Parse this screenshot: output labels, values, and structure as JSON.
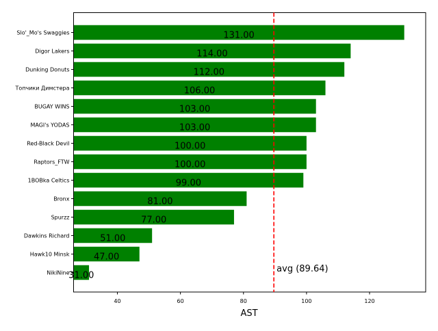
{
  "chart_data": {
    "type": "bar",
    "orientation": "horizontal",
    "title": "",
    "xlabel": "AST",
    "ylabel": "",
    "categories": [
      "Slo'_Mo's Swaggies",
      "Digor Lakers",
      "Dunking Donuts",
      "Топчики Димстера",
      "BUGAY WINS",
      "MAGI's YODAS",
      "Red-Black Devil",
      "Raptors_FTW",
      "1BOBka Celtics",
      "Bronx",
      "Spurzz",
      "Dawkins Richard",
      "Hawk10 Minsk",
      "NikiNine"
    ],
    "values": [
      131,
      114,
      112,
      106,
      103,
      103,
      100,
      100,
      99,
      81,
      77,
      51,
      47,
      31
    ],
    "data_labels": [
      "131.00",
      "114.00",
      "112.00",
      "106.00",
      "103.00",
      "103.00",
      "100.00",
      "100.00",
      "99.00",
      "81.00",
      "77.00",
      "51.00",
      "47.00",
      "31.00"
    ],
    "xlim": [
      26.1,
      137.8
    ],
    "xticks": [
      40,
      60,
      80,
      100,
      120
    ],
    "xtick_labels": [
      "40",
      "60",
      "80",
      "100",
      "120"
    ],
    "grid": false,
    "bar_color": "#008000",
    "average": {
      "value": 89.64,
      "label": "avg (89.64)",
      "color": "#ff0000",
      "style": "dashed"
    }
  }
}
